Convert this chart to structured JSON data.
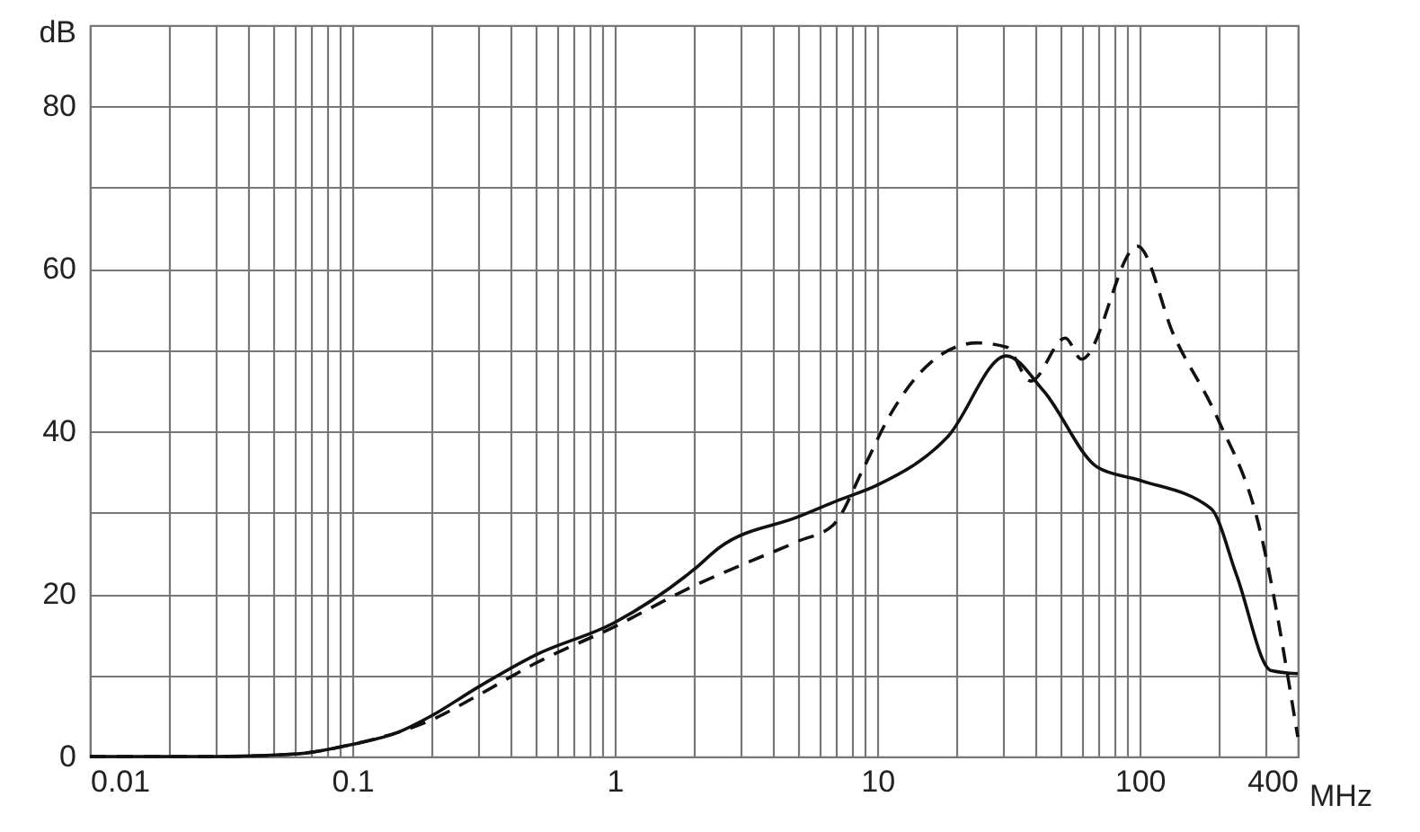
{
  "chart_data": {
    "type": "line",
    "xlabel": "MHz",
    "ylabel": "dB",
    "log": "x",
    "grid": true,
    "xlim": [
      0.01,
      400
    ],
    "ylim": [
      0,
      90
    ],
    "xticks": [
      0.01,
      {
        "value": 0.02,
        "label": null
      },
      {
        "value": 0.03,
        "label": null
      },
      {
        "value": 0.04,
        "label": null
      },
      {
        "value": 0.05,
        "label": null
      },
      {
        "value": 0.06,
        "label": null
      },
      {
        "value": 0.07,
        "label": null
      },
      {
        "value": 0.08,
        "label": null
      },
      {
        "value": 0.09,
        "label": null
      },
      0.1,
      {
        "value": 0.2,
        "label": null
      },
      {
        "value": 0.3,
        "label": null
      },
      {
        "value": 0.4,
        "label": null
      },
      {
        "value": 0.5,
        "label": null
      },
      {
        "value": 0.6,
        "label": null
      },
      {
        "value": 0.7,
        "label": null
      },
      {
        "value": 0.8,
        "label": null
      },
      {
        "value": 0.9,
        "label": null
      },
      1,
      {
        "value": 2,
        "label": null
      },
      {
        "value": 3,
        "label": null
      },
      {
        "value": 4,
        "label": null
      },
      {
        "value": 5,
        "label": null
      },
      {
        "value": 6,
        "label": null
      },
      {
        "value": 7,
        "label": null
      },
      {
        "value": 8,
        "label": null
      },
      {
        "value": 9,
        "label": null
      },
      10,
      {
        "value": 20,
        "label": null
      },
      {
        "value": 30,
        "label": null
      },
      {
        "value": 40,
        "label": null
      },
      {
        "value": 50,
        "label": null
      },
      {
        "value": 60,
        "label": null
      },
      {
        "value": 70,
        "label": null
      },
      {
        "value": 80,
        "label": null
      },
      {
        "value": 90,
        "label": null
      },
      100,
      {
        "value": 200,
        "label": null
      },
      {
        "value": 300,
        "label": null
      },
      400
    ],
    "yticks": [
      0,
      {
        "value": 10,
        "label": null
      },
      20,
      {
        "value": 30,
        "label": null
      },
      40,
      {
        "value": 50,
        "label": null
      },
      60,
      {
        "value": 70,
        "label": null
      },
      80,
      {
        "value": 90,
        "label": null
      }
    ],
    "series": [
      {
        "color": "#111111",
        "line_style": "solid",
        "x": [
          0.01,
          0.03,
          0.06,
          0.1,
          0.15,
          0.2,
          0.3,
          0.5,
          1,
          2,
          2.5,
          5,
          7.2,
          10,
          18.6,
          31,
          43,
          69,
          100,
          187,
          234,
          316,
          400
        ],
        "values": [
          0,
          0,
          0.3,
          1.5,
          3,
          5,
          8.5,
          12.5,
          16.5,
          23,
          25.7,
          29.5,
          31.6,
          33.4,
          39.4,
          49.3,
          45,
          35.6,
          34,
          30.5,
          22.3,
          10.6,
          10.2
        ]
      },
      {
        "color": "#111111",
        "line_style": "dashed",
        "x": [
          0.01,
          0.03,
          0.06,
          0.1,
          0.15,
          0.2,
          0.3,
          0.5,
          1,
          2,
          3,
          5,
          6.8,
          8.9,
          11,
          16,
          24,
          31,
          38.5,
          52,
          60,
          98,
          135,
          198,
          285,
          400
        ],
        "values": [
          0,
          0,
          0.3,
          1.5,
          3,
          4.5,
          7.5,
          11.5,
          16,
          21,
          23.5,
          26.5,
          28.5,
          35.6,
          41.6,
          48.5,
          50.9,
          50.4,
          46.2,
          51.5,
          48.9,
          62.8,
          51.8,
          41.6,
          28.3,
          2.4
        ]
      }
    ]
  }
}
